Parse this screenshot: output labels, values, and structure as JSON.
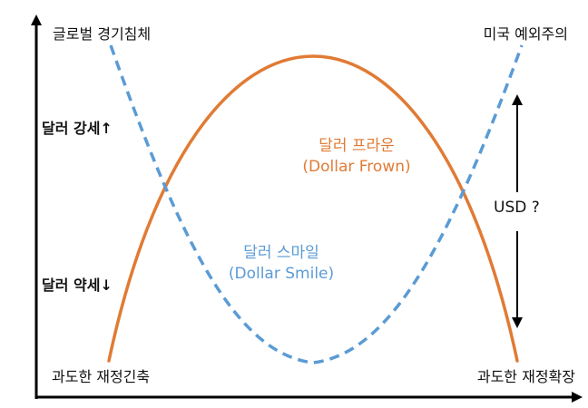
{
  "labels": {
    "top_left": "글로벌 경기침체",
    "top_right": "미국 예외주의",
    "bottom_left": "과도한 재정긴축",
    "bottom_right": "과도한 재정확장",
    "strong_usd": "달러 강세↑",
    "weak_usd": "달러 약세↓",
    "usd_question": "USD ?"
  },
  "curves": {
    "frown": {
      "name_ko": "달러 프라운",
      "name_en": "(Dollar Frown)",
      "color": "#E07B35"
    },
    "smile": {
      "name_ko": "달러 스마일",
      "name_en": "(Dollar Smile)",
      "color": "#5B9BD5"
    }
  },
  "colors": {
    "axis": "#000000",
    "text": "#111111"
  }
}
